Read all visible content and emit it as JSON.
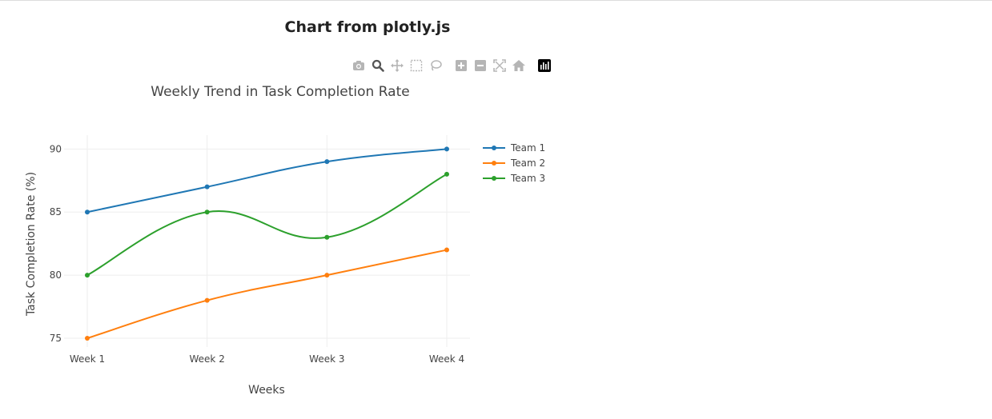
{
  "page": {
    "title": "Chart from plotly.js"
  },
  "modebar": {
    "buttons": [
      {
        "name": "camera-icon",
        "group": 1
      },
      {
        "name": "zoom-icon",
        "group": 1,
        "active": true
      },
      {
        "name": "pan-icon",
        "group": 1
      },
      {
        "name": "box-select-icon",
        "group": 1
      },
      {
        "name": "lasso-select-icon",
        "group": 1
      },
      {
        "name": "zoom-in-icon",
        "group": 2
      },
      {
        "name": "zoom-out-icon",
        "group": 2
      },
      {
        "name": "autoscale-icon",
        "group": 2
      },
      {
        "name": "reset-axes-icon",
        "group": 2
      },
      {
        "name": "plotly-logo-icon",
        "group": 3
      }
    ]
  },
  "chart_data": {
    "type": "line",
    "title": "Weekly Trend in Task Completion Rate",
    "xlabel": "Weeks",
    "ylabel": "Task Completion Rate (%)",
    "categories": [
      "Week 1",
      "Week 2",
      "Week 3",
      "Week 4"
    ],
    "yticks": [
      75,
      80,
      85,
      90
    ],
    "ylim": [
      74.3,
      91.1
    ],
    "grid": true,
    "legend_position": "top-right",
    "series": [
      {
        "name": "Team 1",
        "values": [
          85,
          87,
          89,
          90
        ],
        "color": "#1f77b4",
        "shape": "spline"
      },
      {
        "name": "Team 2",
        "values": [
          75,
          78,
          80,
          82
        ],
        "color": "#ff7f0e",
        "shape": "spline"
      },
      {
        "name": "Team 3",
        "values": [
          80,
          85,
          83,
          88
        ],
        "color": "#2ca02c",
        "shape": "spline"
      }
    ]
  }
}
